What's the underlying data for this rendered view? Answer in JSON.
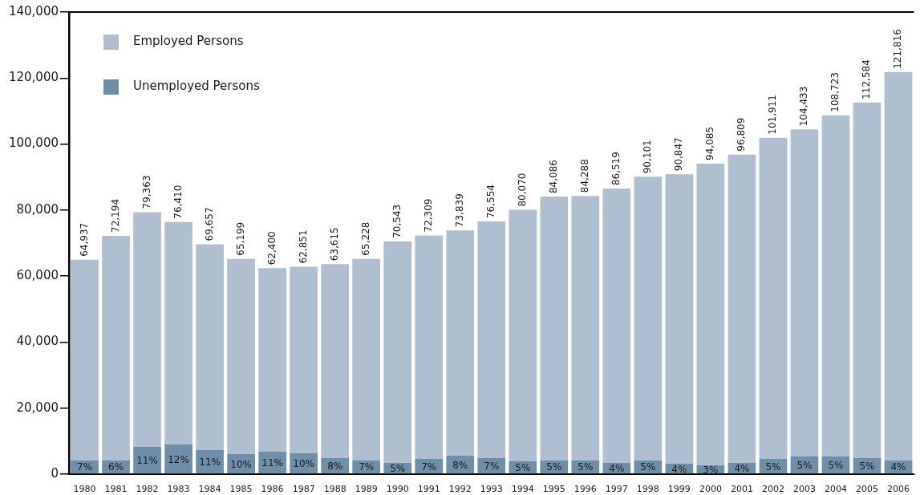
{
  "chart_data": {
    "type": "bar",
    "stacked": true,
    "categories": [
      "1980",
      "1981",
      "1982",
      "1983",
      "1984",
      "1985",
      "1986",
      "1987",
      "1988",
      "1989",
      "1990",
      "1991",
      "1992",
      "1993",
      "1994",
      "1995",
      "1996",
      "1997",
      "1998",
      "1999",
      "2000",
      "2001",
      "2002",
      "2003",
      "2004",
      "2005",
      "2006"
    ],
    "series": [
      {
        "name": "Unemployed Persons",
        "color": "#6f8ea8",
        "values": [
          4200,
          4200,
          8300,
          9000,
          7300,
          6100,
          6800,
          6300,
          4900,
          4200,
          3400,
          4600,
          5600,
          4900,
          3900,
          4200,
          4200,
          3400,
          4200,
          3200,
          2700,
          3400,
          4600,
          5400,
          5400,
          4900,
          4200
        ]
      },
      {
        "name": "Employed Persons",
        "color": "#afbfd0",
        "values": [
          60737,
          67994,
          71063,
          67410,
          62357,
          59099,
          55600,
          56551,
          58715,
          61028,
          67143,
          67709,
          68239,
          71654,
          76170,
          79886,
          80088,
          83119,
          85901,
          87647,
          91385,
          93409,
          97311,
          99033,
          103323,
          107684,
          117616
        ]
      }
    ],
    "totals": [
      "64,937",
      "72,194",
      "79,363",
      "76,410",
      "69,657",
      "65,199",
      "62,400",
      "62,851",
      "63,615",
      "65,228",
      "70,543",
      "72,309",
      "73,839",
      "76,554",
      "80,070",
      "84,086",
      "84,288",
      "86,519",
      "90,101",
      "90,847",
      "94,085",
      "96,809",
      "101,911",
      "104,433",
      "108,723",
      "112,584",
      "121,816"
    ],
    "annotations": [
      {
        "text": "7%",
        "x": "1980",
        "y": 4200
      },
      {
        "text": "6%",
        "x": "1981",
        "y": 4200
      },
      {
        "text": "11%",
        "x": "1982",
        "y": 8300
      },
      {
        "text": "12%",
        "x": "1983",
        "y": 9000
      },
      {
        "text": "11%",
        "x": "1984",
        "y": 7300
      },
      {
        "text": "10%",
        "x": "1985",
        "y": 6100
      },
      {
        "text": "11%",
        "x": "1986",
        "y": 6800
      },
      {
        "text": "10%",
        "x": "1987",
        "y": 6300
      },
      {
        "text": "8%",
        "x": "1988",
        "y": 4900
      },
      {
        "text": "7%",
        "x": "1989",
        "y": 4200
      },
      {
        "text": "5%",
        "x": "1990",
        "y": 3400
      },
      {
        "text": "7%",
        "x": "1991",
        "y": 4600
      },
      {
        "text": "8%",
        "x": "1992",
        "y": 5600
      },
      {
        "text": "7%",
        "x": "1993",
        "y": 4900
      },
      {
        "text": "5%",
        "x": "1994",
        "y": 3900
      },
      {
        "text": "5%",
        "x": "1995",
        "y": 4200
      },
      {
        "text": "5%",
        "x": "1996",
        "y": 4200
      },
      {
        "text": "4%",
        "x": "1997",
        "y": 3400
      },
      {
        "text": "5%",
        "x": "1998",
        "y": 4200
      },
      {
        "text": "4%",
        "x": "1999",
        "y": 3200
      },
      {
        "text": "3%",
        "x": "2000",
        "y": 2700
      },
      {
        "text": "4%",
        "x": "2001",
        "y": 3400
      },
      {
        "text": "5%",
        "x": "2002",
        "y": 4600
      },
      {
        "text": "5%",
        "x": "2003",
        "y": 5400
      },
      {
        "text": "5%",
        "x": "2004",
        "y": 5400
      },
      {
        "text": "5%",
        "x": "2005",
        "y": 4900
      },
      {
        "text": "4%",
        "x": "2006",
        "y": 4200
      }
    ],
    "ylim": [
      0,
      140000
    ],
    "yticks": [
      {
        "value": 0,
        "label": "0"
      },
      {
        "value": 20000,
        "label": "20,000"
      },
      {
        "value": 40000,
        "label": "40,000"
      },
      {
        "value": 60000,
        "label": "60,000"
      },
      {
        "value": 80000,
        "label": "80,000"
      },
      {
        "value": 100000,
        "label": "100,000"
      },
      {
        "value": 120000,
        "label": "120,000"
      },
      {
        "value": 140000,
        "label": "140,000"
      }
    ],
    "legend": "top left",
    "grid": false
  }
}
